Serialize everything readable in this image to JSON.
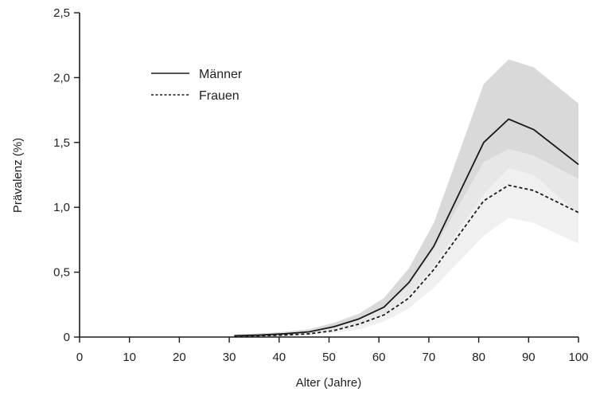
{
  "chart_data": {
    "type": "line",
    "xlabel": "Alter (Jahre)",
    "ylabel": "Prävalenz (%)",
    "xlim": [
      0,
      100
    ],
    "ylim": [
      0,
      2.5
    ],
    "xticks": [
      0,
      10,
      20,
      30,
      40,
      50,
      60,
      70,
      80,
      90,
      100
    ],
    "xtick_labels": [
      "0",
      "10",
      "20",
      "30",
      "40",
      "50",
      "60",
      "70",
      "80",
      "90",
      "100"
    ],
    "yticks": [
      0,
      0.5,
      1.0,
      1.5,
      2.0,
      2.5
    ],
    "ytick_labels": [
      "0",
      "0,5",
      "1,0",
      "1,5",
      "2,0",
      "2,5"
    ],
    "grid": false,
    "legend_position": "top-left",
    "x": [
      31,
      36,
      41,
      46,
      51,
      56,
      61,
      66,
      71,
      81,
      86,
      91,
      100
    ],
    "series": [
      {
        "name": "Männer",
        "style": "solid",
        "color": "#1a1a1a",
        "band_color": "#d9d9d9",
        "values": [
          0.01,
          0.015,
          0.025,
          0.04,
          0.08,
          0.14,
          0.23,
          0.42,
          0.7,
          1.5,
          1.68,
          1.6,
          1.33
        ],
        "lower": [
          0.0,
          0.005,
          0.012,
          0.025,
          0.05,
          0.1,
          0.17,
          0.32,
          0.55,
          1.1,
          1.3,
          1.25,
          0.95
        ],
        "upper": [
          0.02,
          0.028,
          0.04,
          0.06,
          0.11,
          0.18,
          0.3,
          0.53,
          0.88,
          1.95,
          2.14,
          2.08,
          1.8
        ]
      },
      {
        "name": "Frauen",
        "style": "dashed",
        "color": "#1a1a1a",
        "band_color": "#ebebeb",
        "values": [
          0.005,
          0.01,
          0.015,
          0.025,
          0.05,
          0.1,
          0.17,
          0.3,
          0.52,
          1.05,
          1.17,
          1.13,
          0.96
        ],
        "lower": [
          0.0,
          0.003,
          0.008,
          0.015,
          0.03,
          0.06,
          0.12,
          0.22,
          0.38,
          0.78,
          0.92,
          0.88,
          0.72
        ],
        "upper": [
          0.012,
          0.018,
          0.025,
          0.04,
          0.07,
          0.14,
          0.23,
          0.4,
          0.68,
          1.35,
          1.45,
          1.4,
          1.22
        ]
      }
    ]
  }
}
